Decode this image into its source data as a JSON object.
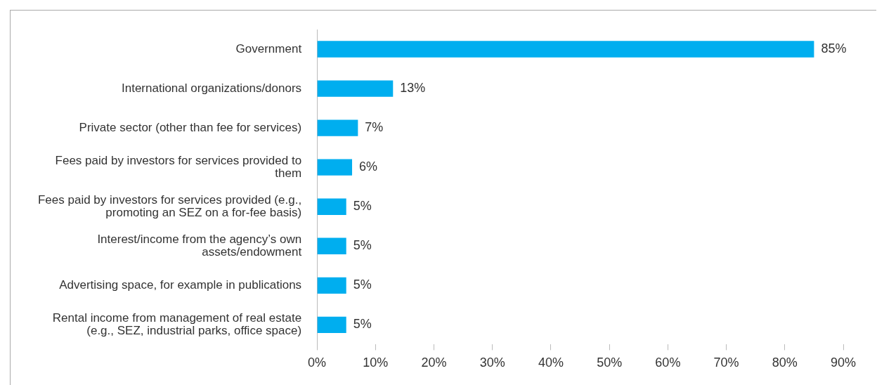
{
  "chart_data": {
    "type": "bar",
    "orientation": "horizontal",
    "categories": [
      "Government",
      "International organizations/donors",
      "Private sector (other than fee for services)",
      "Fees paid by investors for services provided to them",
      "Fees paid by investors for services provided (e.g., promoting an SEZ on a for-fee basis)",
      "Interest/income from the agency’s own assets/endowment",
      "Advertising space, for example in publications",
      "Rental income from management of real estate (e.g., SEZ, industrial parks, office space)"
    ],
    "values": [
      85,
      13,
      7,
      6,
      5,
      5,
      5,
      5
    ],
    "value_labels": [
      "85%",
      "13%",
      "7%",
      "6%",
      "5%",
      "5%",
      "5%",
      "5%"
    ],
    "color": "#00aeef",
    "xlim": [
      0,
      90
    ],
    "xticks": [
      {
        "value": 0,
        "label": "0%"
      },
      {
        "value": 10,
        "label": "10%"
      },
      {
        "value": 20,
        "label": "20%"
      },
      {
        "value": 30,
        "label": "30%"
      },
      {
        "value": 40,
        "label": "40%"
      },
      {
        "value": 50,
        "label": "50%"
      },
      {
        "value": 60,
        "label": "60%"
      },
      {
        "value": 70,
        "label": "70%"
      },
      {
        "value": 80,
        "label": "80%"
      },
      {
        "value": 90,
        "label": "90%"
      }
    ],
    "grid": false,
    "legend": false
  }
}
